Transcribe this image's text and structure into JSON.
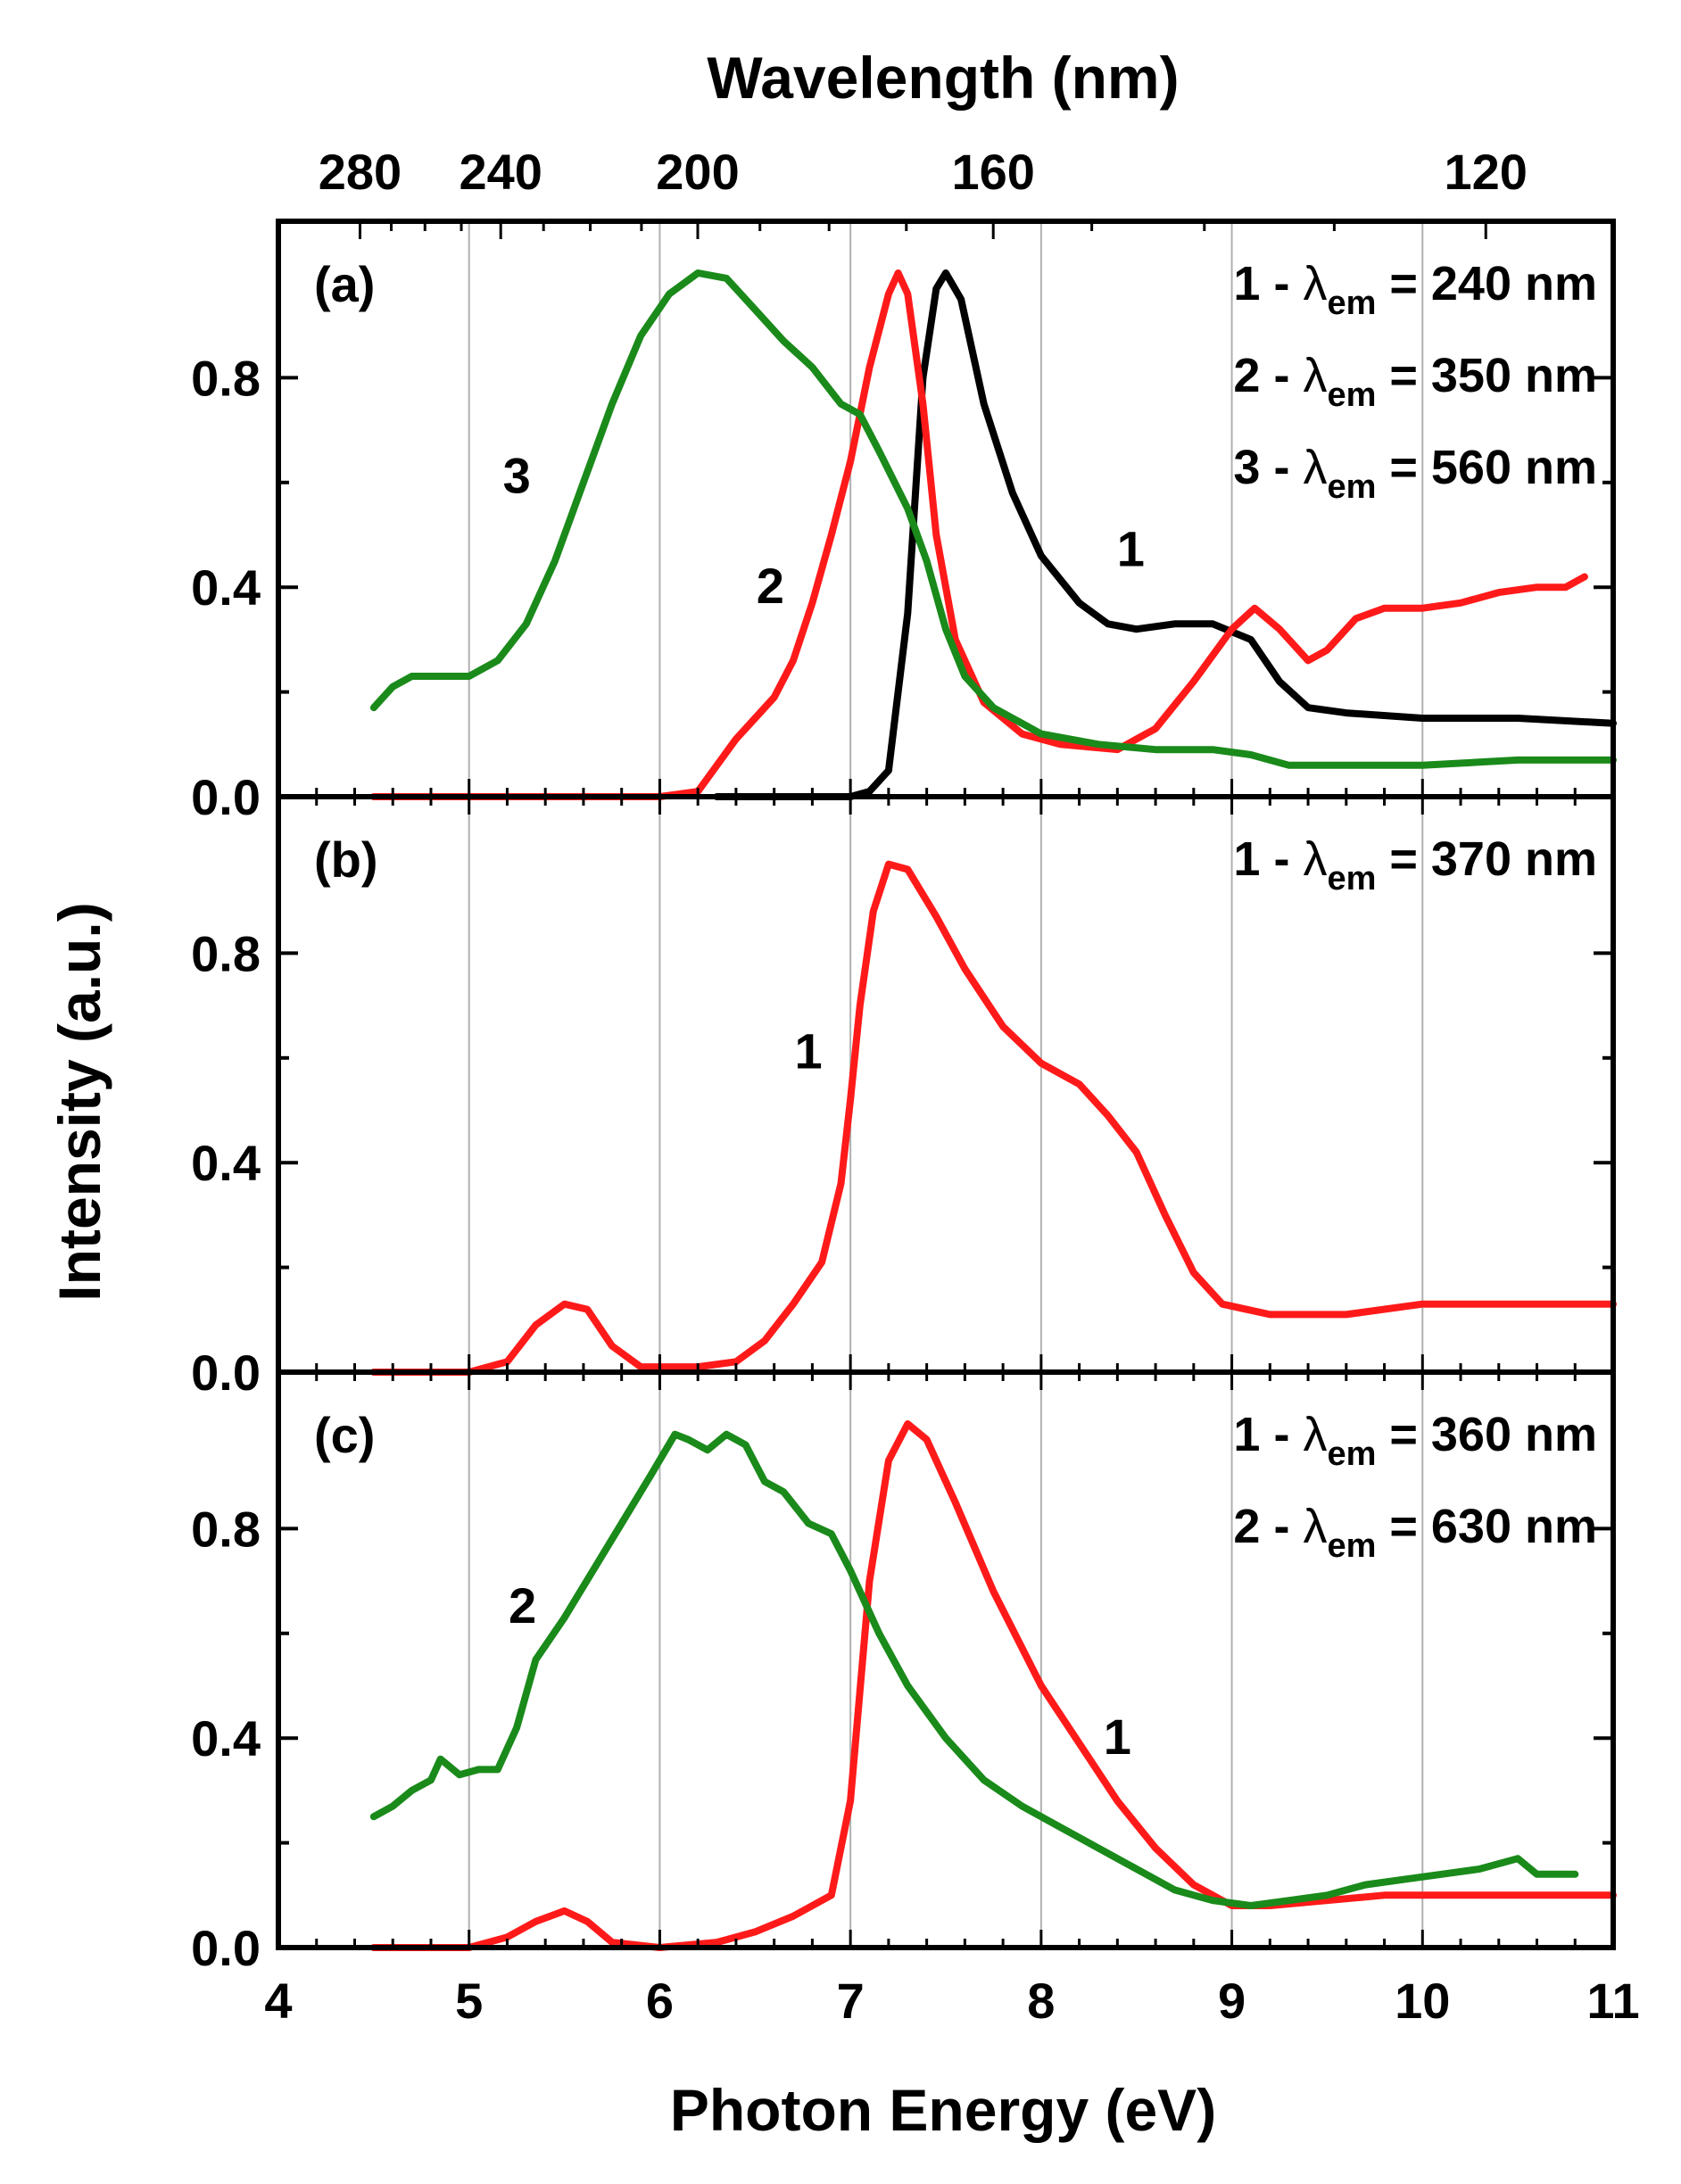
{
  "chart_data": {
    "type": "line",
    "xlabel": "Photon Energy (eV)",
    "ylabel": "Intensity (a.u.)",
    "top_axis_label": "Wavelength (nm)",
    "xlim": [
      4,
      11
    ],
    "ylim": [
      0,
      1.0
    ],
    "x_ticks": [
      "4",
      "5",
      "6",
      "7",
      "8",
      "9",
      "10",
      "11"
    ],
    "y_ticks": [
      "0.0",
      "0.4",
      "0.8"
    ],
    "top_ticks": [
      {
        "nm": 280,
        "label": "280"
      },
      {
        "nm": 240,
        "label": "240"
      },
      {
        "nm": 200,
        "label": "200"
      },
      {
        "nm": 160,
        "label": "160"
      },
      {
        "nm": 120,
        "label": "120"
      }
    ],
    "vertical_grid_at": [
      5,
      6,
      7,
      8,
      9,
      10
    ],
    "colors": {
      "black": "#000000",
      "red": "#ff1a1a",
      "green": "#1a8a1a",
      "grid": "#b0b0b0"
    },
    "panels": [
      {
        "panel_label": "(a)",
        "annotations": [
          {
            "prefix": "1 - ",
            "sub": "em",
            "suffix": " = 240 nm"
          },
          {
            "prefix": "2 - ",
            "sub": "em",
            "suffix": " = 350 nm"
          },
          {
            "prefix": "3 - ",
            "sub": "em",
            "suffix": " = 560 nm"
          }
        ],
        "series": [
          {
            "curve_label": "1",
            "color": "#000000",
            "label_pos": [
              8.47,
              0.44
            ],
            "points": [
              [
                6.3,
                0.0
              ],
              [
                7.0,
                0.0
              ],
              [
                7.1,
                0.01
              ],
              [
                7.2,
                0.05
              ],
              [
                7.3,
                0.35
              ],
              [
                7.38,
                0.8
              ],
              [
                7.45,
                0.97
              ],
              [
                7.5,
                1.0
              ],
              [
                7.58,
                0.95
              ],
              [
                7.7,
                0.75
              ],
              [
                7.85,
                0.58
              ],
              [
                8.0,
                0.46
              ],
              [
                8.2,
                0.37
              ],
              [
                8.35,
                0.33
              ],
              [
                8.5,
                0.32
              ],
              [
                8.7,
                0.33
              ],
              [
                8.9,
                0.33
              ],
              [
                9.1,
                0.3
              ],
              [
                9.25,
                0.22
              ],
              [
                9.4,
                0.17
              ],
              [
                9.6,
                0.16
              ],
              [
                10.0,
                0.15
              ],
              [
                10.5,
                0.15
              ],
              [
                11.0,
                0.14
              ]
            ]
          },
          {
            "curve_label": "2",
            "color": "#ff1a1a",
            "label_pos": [
              6.58,
              0.37
            ],
            "points": [
              [
                4.5,
                0.0
              ],
              [
                6.0,
                0.0
              ],
              [
                6.2,
                0.01
              ],
              [
                6.3,
                0.06
              ],
              [
                6.4,
                0.11
              ],
              [
                6.5,
                0.15
              ],
              [
                6.6,
                0.19
              ],
              [
                6.7,
                0.26
              ],
              [
                6.8,
                0.37
              ],
              [
                6.9,
                0.5
              ],
              [
                7.0,
                0.64
              ],
              [
                7.1,
                0.82
              ],
              [
                7.2,
                0.96
              ],
              [
                7.25,
                1.0
              ],
              [
                7.3,
                0.96
              ],
              [
                7.38,
                0.75
              ],
              [
                7.45,
                0.5
              ],
              [
                7.55,
                0.3
              ],
              [
                7.7,
                0.18
              ],
              [
                7.9,
                0.12
              ],
              [
                8.1,
                0.1
              ],
              [
                8.4,
                0.09
              ],
              [
                8.6,
                0.13
              ],
              [
                8.8,
                0.22
              ],
              [
                9.0,
                0.32
              ],
              [
                9.12,
                0.36
              ],
              [
                9.25,
                0.32
              ],
              [
                9.4,
                0.26
              ],
              [
                9.5,
                0.28
              ],
              [
                9.65,
                0.34
              ],
              [
                9.8,
                0.36
              ],
              [
                10.0,
                0.36
              ],
              [
                10.2,
                0.37
              ],
              [
                10.4,
                0.39
              ],
              [
                10.6,
                0.4
              ],
              [
                10.75,
                0.4
              ],
              [
                10.85,
                0.42
              ]
            ]
          },
          {
            "curve_label": "3",
            "color": "#1a8a1a",
            "label_pos": [
              5.25,
              0.58
            ],
            "points": [
              [
                4.5,
                0.17
              ],
              [
                4.6,
                0.21
              ],
              [
                4.7,
                0.23
              ],
              [
                4.85,
                0.23
              ],
              [
                5.0,
                0.23
              ],
              [
                5.15,
                0.26
              ],
              [
                5.3,
                0.33
              ],
              [
                5.45,
                0.45
              ],
              [
                5.6,
                0.6
              ],
              [
                5.75,
                0.75
              ],
              [
                5.9,
                0.88
              ],
              [
                6.05,
                0.96
              ],
              [
                6.2,
                1.0
              ],
              [
                6.35,
                0.99
              ],
              [
                6.5,
                0.93
              ],
              [
                6.65,
                0.87
              ],
              [
                6.8,
                0.82
              ],
              [
                6.95,
                0.75
              ],
              [
                7.05,
                0.73
              ],
              [
                7.15,
                0.66
              ],
              [
                7.3,
                0.55
              ],
              [
                7.4,
                0.45
              ],
              [
                7.5,
                0.32
              ],
              [
                7.6,
                0.23
              ],
              [
                7.75,
                0.17
              ],
              [
                8.0,
                0.12
              ],
              [
                8.3,
                0.1
              ],
              [
                8.6,
                0.09
              ],
              [
                8.9,
                0.09
              ],
              [
                9.1,
                0.08
              ],
              [
                9.3,
                0.06
              ],
              [
                9.6,
                0.06
              ],
              [
                10.0,
                0.06
              ],
              [
                10.5,
                0.07
              ],
              [
                11.0,
                0.07
              ]
            ]
          }
        ]
      },
      {
        "panel_label": "(b)",
        "annotations": [
          {
            "prefix": "1 - ",
            "sub": "em",
            "suffix": " = 370 nm"
          }
        ],
        "series": [
          {
            "curve_label": "1",
            "color": "#ff1a1a",
            "label_pos": [
              6.78,
              0.58
            ],
            "points": [
              [
                4.5,
                0.0
              ],
              [
                5.0,
                0.0
              ],
              [
                5.2,
                0.02
              ],
              [
                5.35,
                0.09
              ],
              [
                5.5,
                0.13
              ],
              [
                5.62,
                0.12
              ],
              [
                5.75,
                0.05
              ],
              [
                5.9,
                0.01
              ],
              [
                6.2,
                0.01
              ],
              [
                6.4,
                0.02
              ],
              [
                6.55,
                0.06
              ],
              [
                6.7,
                0.13
              ],
              [
                6.85,
                0.21
              ],
              [
                6.95,
                0.36
              ],
              [
                7.0,
                0.52
              ],
              [
                7.05,
                0.7
              ],
              [
                7.12,
                0.88
              ],
              [
                7.2,
                0.97
              ],
              [
                7.3,
                0.96
              ],
              [
                7.45,
                0.87
              ],
              [
                7.6,
                0.77
              ],
              [
                7.8,
                0.66
              ],
              [
                8.0,
                0.59
              ],
              [
                8.2,
                0.55
              ],
              [
                8.35,
                0.49
              ],
              [
                8.5,
                0.42
              ],
              [
                8.65,
                0.3
              ],
              [
                8.8,
                0.19
              ],
              [
                8.95,
                0.13
              ],
              [
                9.2,
                0.11
              ],
              [
                9.6,
                0.11
              ],
              [
                10.0,
                0.13
              ],
              [
                10.5,
                0.13
              ],
              [
                11.0,
                0.13
              ]
            ]
          }
        ]
      },
      {
        "panel_label": "(c)",
        "annotations": [
          {
            "prefix": "1 -  ",
            "sub": "em",
            "suffix": " = 360 nm"
          },
          {
            "prefix": "2 -  ",
            "sub": "em",
            "suffix": " = 630 nm"
          }
        ],
        "series": [
          {
            "curve_label": "1",
            "color": "#ff1a1a",
            "label_pos": [
              8.4,
              0.37
            ],
            "points": [
              [
                4.5,
                0.0
              ],
              [
                5.0,
                0.0
              ],
              [
                5.2,
                0.02
              ],
              [
                5.35,
                0.05
              ],
              [
                5.5,
                0.07
              ],
              [
                5.62,
                0.05
              ],
              [
                5.75,
                0.01
              ],
              [
                6.0,
                0.0
              ],
              [
                6.3,
                0.01
              ],
              [
                6.5,
                0.03
              ],
              [
                6.7,
                0.06
              ],
              [
                6.9,
                0.1
              ],
              [
                7.0,
                0.28
              ],
              [
                7.1,
                0.7
              ],
              [
                7.2,
                0.93
              ],
              [
                7.3,
                1.0
              ],
              [
                7.4,
                0.97
              ],
              [
                7.55,
                0.85
              ],
              [
                7.75,
                0.68
              ],
              [
                8.0,
                0.5
              ],
              [
                8.2,
                0.39
              ],
              [
                8.4,
                0.28
              ],
              [
                8.6,
                0.19
              ],
              [
                8.8,
                0.12
              ],
              [
                9.0,
                0.08
              ],
              [
                9.2,
                0.08
              ],
              [
                9.5,
                0.09
              ],
              [
                9.8,
                0.1
              ],
              [
                10.2,
                0.1
              ],
              [
                11.0,
                0.1
              ]
            ]
          },
          {
            "curve_label": "2",
            "color": "#1a8a1a",
            "label_pos": [
              5.28,
              0.62
            ],
            "points": [
              [
                4.5,
                0.25
              ],
              [
                4.6,
                0.27
              ],
              [
                4.7,
                0.3
              ],
              [
                4.8,
                0.32
              ],
              [
                4.85,
                0.36
              ],
              [
                4.95,
                0.33
              ],
              [
                5.05,
                0.34
              ],
              [
                5.15,
                0.34
              ],
              [
                5.25,
                0.42
              ],
              [
                5.35,
                0.55
              ],
              [
                5.5,
                0.63
              ],
              [
                5.65,
                0.72
              ],
              [
                5.8,
                0.81
              ],
              [
                5.95,
                0.9
              ],
              [
                6.08,
                0.98
              ],
              [
                6.15,
                0.97
              ],
              [
                6.25,
                0.95
              ],
              [
                6.35,
                0.98
              ],
              [
                6.45,
                0.96
              ],
              [
                6.55,
                0.89
              ],
              [
                6.65,
                0.87
              ],
              [
                6.78,
                0.81
              ],
              [
                6.9,
                0.79
              ],
              [
                7.0,
                0.72
              ],
              [
                7.15,
                0.6
              ],
              [
                7.3,
                0.5
              ],
              [
                7.5,
                0.4
              ],
              [
                7.7,
                0.32
              ],
              [
                7.9,
                0.27
              ],
              [
                8.1,
                0.23
              ],
              [
                8.3,
                0.19
              ],
              [
                8.5,
                0.15
              ],
              [
                8.7,
                0.11
              ],
              [
                8.9,
                0.09
              ],
              [
                9.1,
                0.08
              ],
              [
                9.3,
                0.09
              ],
              [
                9.5,
                0.1
              ],
              [
                9.7,
                0.12
              ],
              [
                9.9,
                0.13
              ],
              [
                10.1,
                0.14
              ],
              [
                10.3,
                0.15
              ],
              [
                10.5,
                0.17
              ],
              [
                10.6,
                0.14
              ],
              [
                10.8,
                0.14
              ]
            ]
          }
        ]
      }
    ]
  }
}
